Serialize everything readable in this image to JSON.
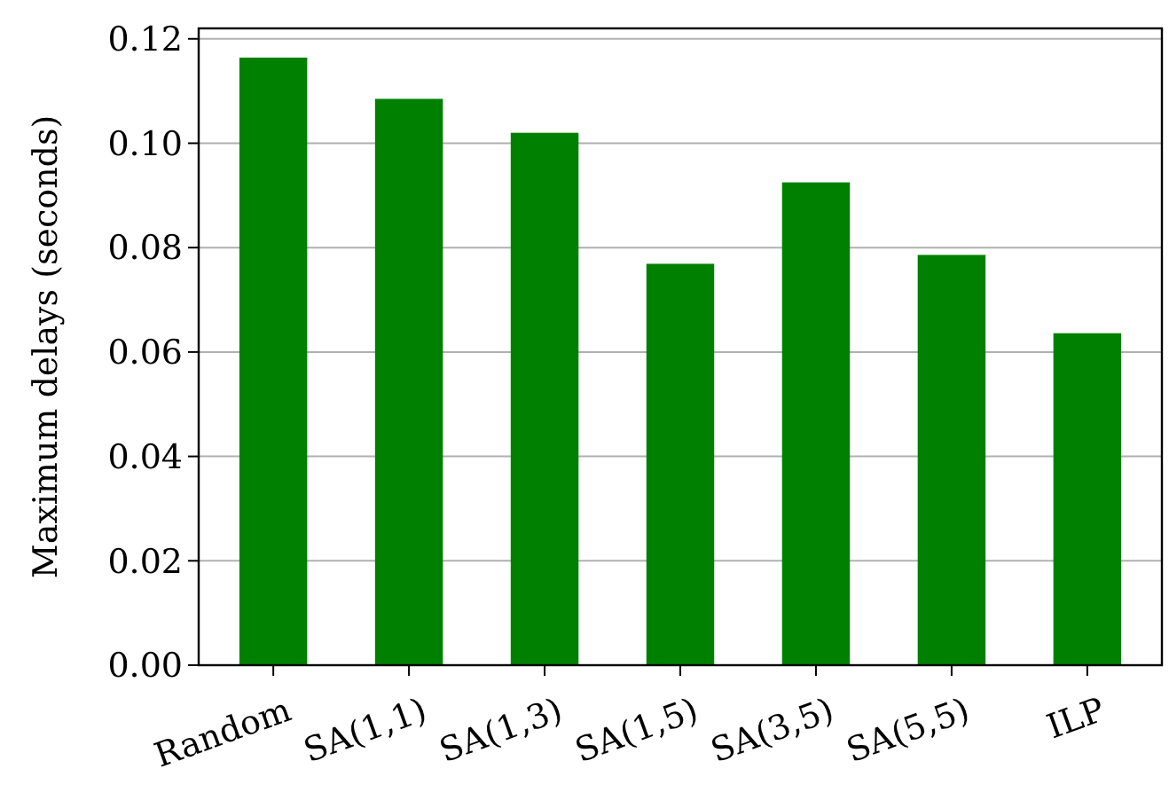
{
  "chart_data": {
    "type": "bar",
    "ylabel": "Maximum delays (seconds)",
    "categories": [
      "Random",
      "SA(1,1)",
      "SA(1,3)",
      "SA(1,5)",
      "SA(3,5)",
      "SA(5,5)",
      "ILP"
    ],
    "values": [
      0.1164,
      0.1085,
      0.102,
      0.0769,
      0.0925,
      0.0786,
      0.0636
    ],
    "color": "#008000",
    "ylim": [
      0,
      0.122
    ],
    "yticks": [
      {
        "value": 0,
        "label": "0.00"
      },
      {
        "value": 0.02,
        "label": "0.02"
      },
      {
        "value": 0.04,
        "label": "0.04"
      },
      {
        "value": 0.06,
        "label": "0.06"
      },
      {
        "value": 0.08,
        "label": "0.08"
      },
      {
        "value": 0.1,
        "label": "0.10"
      },
      {
        "value": 0.12,
        "label": "0.12"
      }
    ],
    "grid": "y"
  }
}
